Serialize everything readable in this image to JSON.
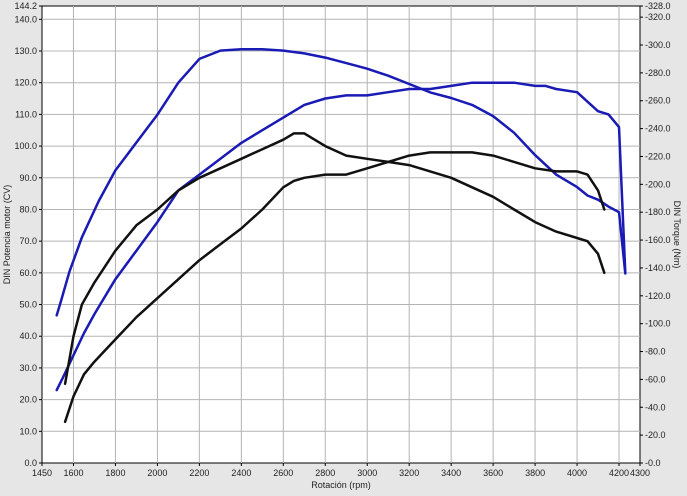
{
  "chart_data": {
    "type": "line",
    "xlabel": "Rotación (rpm)",
    "ylabel_left": "DIN Potencia motor (CV)",
    "ylabel_right": "DIN Torque (Nm)",
    "xlim": [
      1450,
      4300
    ],
    "ylim_left": [
      0,
      144.2
    ],
    "ylim_right": [
      0,
      328
    ],
    "grid": true,
    "x_ticks": [
      "1450",
      "1600",
      "1800",
      "2000",
      "2200",
      "2400",
      "2600",
      "2800",
      "3000",
      "3200",
      "3400",
      "3600",
      "3800",
      "4000",
      "4200",
      "4300"
    ],
    "x_tick_values": [
      1450,
      1600,
      1800,
      2000,
      2200,
      2400,
      2600,
      2800,
      3000,
      3200,
      3400,
      3600,
      3800,
      4000,
      4200,
      4300
    ],
    "y_left_ticks": [
      "0.0",
      "10.0",
      "20.0",
      "30.0",
      "40.0",
      "50.0",
      "60.0",
      "70.0",
      "80.0",
      "90.0",
      "100.0",
      "110.0",
      "120.0",
      "130.0",
      "140.0",
      "144.2"
    ],
    "y_left_tick_values": [
      0,
      10,
      20,
      30,
      40,
      50,
      60,
      70,
      80,
      90,
      100,
      110,
      120,
      130,
      140,
      144.2
    ],
    "y_right_ticks": [
      "0.0",
      "20.0",
      "40.0",
      "60.0",
      "80.0",
      "100.0",
      "120.0",
      "140.0",
      "160.0",
      "180.0",
      "200.0",
      "220.0",
      "240.0",
      "260.0",
      "280.0",
      "300.0",
      "320.0",
      "328.0"
    ],
    "y_right_tick_values": [
      0,
      20,
      40,
      60,
      80,
      100,
      120,
      140,
      160,
      180,
      200,
      220,
      240,
      260,
      280,
      300,
      320,
      328
    ],
    "series": [
      {
        "axis": "right",
        "color": "#1a1ab4",
        "x": [
          1520,
          1540,
          1580,
          1640,
          1720,
          1800,
          1900,
          2000,
          2100,
          2200,
          2300,
          2400,
          2500,
          2600,
          2700,
          2800,
          2900,
          3000,
          3100,
          3200,
          3300,
          3400,
          3500,
          3600,
          3700,
          3800,
          3900,
          4000,
          4050,
          4100,
          4150,
          4200,
          4230
        ],
        "y": [
          106,
          116,
          137,
          162,
          188,
          210,
          230,
          250,
          273,
          290,
          296,
          297,
          297,
          296,
          294,
          291,
          287,
          283,
          278,
          272,
          266,
          262,
          257,
          249,
          237,
          221,
          207,
          198,
          192,
          189,
          184,
          180,
          136
        ]
      },
      {
        "axis": "left",
        "color": "#1a1ab4",
        "x": [
          1520,
          1550,
          1600,
          1650,
          1700,
          1800,
          1900,
          2000,
          2100,
          2200,
          2300,
          2400,
          2500,
          2600,
          2700,
          2800,
          2900,
          3000,
          3100,
          3200,
          3300,
          3400,
          3500,
          3550,
          3600,
          3700,
          3800,
          3850,
          3900,
          4000,
          4050,
          4100,
          4150,
          4200,
          4230
        ],
        "y": [
          23,
          27,
          34,
          41,
          47,
          58,
          67,
          76,
          86,
          91,
          96,
          101,
          105,
          109,
          113,
          115,
          116,
          116,
          117,
          118,
          118,
          119,
          120,
          120,
          120,
          120,
          119,
          119,
          118,
          117,
          114,
          111,
          110,
          106,
          60
        ]
      },
      {
        "axis": "left",
        "color": "#111111",
        "x": [
          1560,
          1600,
          1640,
          1700,
          1800,
          1900,
          2000,
          2100,
          2200,
          2300,
          2400,
          2500,
          2600,
          2650,
          2700,
          2800,
          2900,
          3000,
          3100,
          3200,
          3300,
          3400,
          3500,
          3600,
          3700,
          3800,
          3900,
          4000,
          4050,
          4100,
          4130
        ],
        "y": [
          25,
          40,
          50,
          57,
          67,
          75,
          80,
          86,
          90,
          93,
          96,
          99,
          102,
          104,
          104,
          100,
          97,
          96,
          95,
          94,
          92,
          90,
          87,
          84,
          80,
          76,
          73,
          71,
          70,
          66,
          60
        ]
      },
      {
        "axis": "left",
        "color": "#111111",
        "x": [
          1560,
          1600,
          1650,
          1700,
          1800,
          1900,
          2000,
          2100,
          2200,
          2300,
          2400,
          2500,
          2600,
          2650,
          2700,
          2800,
          2900,
          3000,
          3100,
          3200,
          3300,
          3400,
          3500,
          3600,
          3700,
          3800,
          3900,
          4000,
          4050,
          4100,
          4130
        ],
        "y": [
          13,
          21,
          28,
          32,
          39,
          46,
          52,
          58,
          64,
          69,
          74,
          80,
          87,
          89,
          90,
          91,
          91,
          93,
          95,
          97,
          98,
          98,
          98,
          97,
          95,
          93,
          92,
          92,
          91,
          86,
          80
        ]
      }
    ]
  }
}
